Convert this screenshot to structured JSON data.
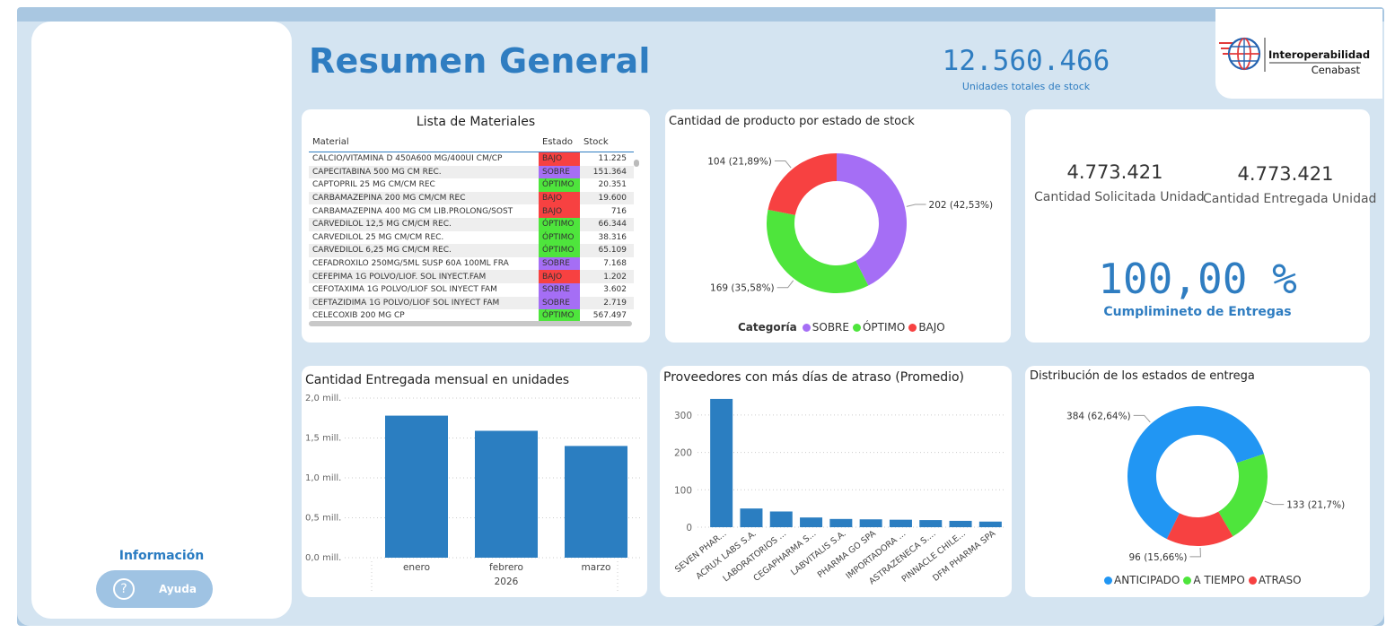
{
  "header": {
    "title": "Resumen General",
    "total_stock_value": "12.560.466",
    "total_stock_label": "Unidades totales de stock",
    "logo_line1": "Interoperabilidad",
    "logo_line2": "Cenabast"
  },
  "sidebar": {
    "info_label": "Información",
    "help_icon": "?",
    "help_label": "Ayuda"
  },
  "colors": {
    "accent": "#2f7dc1",
    "sobre": "#a56ef5",
    "optimo": "#4ee53c",
    "bajo": "#f74141",
    "bar": "#2b7ec1",
    "anticipado": "#2196f3",
    "atiempo": "#4ee53c",
    "atraso": "#f74141"
  },
  "materials": {
    "title": "Lista de Materiales",
    "columns": [
      "Material",
      "Estado",
      "Stock"
    ],
    "rows": [
      {
        "material": "CALCIO/VITAMINA D 450A600 MG/400UI CM/CP",
        "estado": "BAJO",
        "stock": "11.225"
      },
      {
        "material": "CAPECITABINA 500 MG CM REC.",
        "estado": "SOBRE",
        "stock": "151.364"
      },
      {
        "material": "CAPTOPRIL 25 MG CM/CM REC",
        "estado": "ÓPTIMO",
        "stock": "20.351"
      },
      {
        "material": "CARBAMAZEPINA 200 MG CM/CM REC",
        "estado": "BAJO",
        "stock": "19.600"
      },
      {
        "material": "CARBAMAZEPINA 400 MG CM LIB.PROLONG/SOST",
        "estado": "BAJO",
        "stock": "716"
      },
      {
        "material": "CARVEDILOL 12,5 MG CM/CM REC.",
        "estado": "ÓPTIMO",
        "stock": "66.344"
      },
      {
        "material": "CARVEDILOL 25 MG CM/CM REC.",
        "estado": "ÓPTIMO",
        "stock": "38.316"
      },
      {
        "material": "CARVEDILOL 6,25 MG CM/CM REC.",
        "estado": "ÓPTIMO",
        "stock": "65.109"
      },
      {
        "material": "CEFADROXILO 250MG/5ML SUSP 60A 100ML FRA",
        "estado": "SOBRE",
        "stock": "7.168"
      },
      {
        "material": "CEFEPIMA 1G POLVO/LIOF. SOL INYECT.FAM",
        "estado": "BAJO",
        "stock": "1.202"
      },
      {
        "material": "CEFOTAXIMA 1G POLVO/LIOF SOL INYECT FAM",
        "estado": "SOBRE",
        "stock": "3.602"
      },
      {
        "material": "CEFTAZIDIMA 1G POLVO/LIOF SOL INYECT FAM",
        "estado": "SOBRE",
        "stock": "2.719"
      },
      {
        "material": "CELECOXIB 200 MG CP",
        "estado": "ÓPTIMO",
        "stock": "567.497"
      }
    ]
  },
  "kpis": {
    "solicitada_value": "4.773.421",
    "solicitada_label": "Cantidad Solicitada Unidad",
    "entregada_value": "4.773.421",
    "entregada_label": "Cantidad Entregada Unidad",
    "cumplimiento_value": "100,00 %",
    "cumplimiento_label": "Cumplimineto de Entregas"
  },
  "chart_data": [
    {
      "type": "pie",
      "title": "Cantidad de producto por estado de stock",
      "legend_title": "Categoría",
      "legend_position": "bottom",
      "categories": [
        "SOBRE",
        "ÓPTIMO",
        "BAJO"
      ],
      "values": [
        202,
        169,
        104
      ],
      "data_labels": [
        "202 (42,53%)",
        "169 (35,58%)",
        "104 (21,89%)"
      ],
      "colors": [
        "#a56ef5",
        "#4ee53c",
        "#f74141"
      ]
    },
    {
      "type": "bar",
      "title": "Cantidad Entregada mensual en unidades",
      "categories": [
        "enero",
        "febrero",
        "marzo"
      ],
      "x_group_label": "2026",
      "values": [
        1780000,
        1590000,
        1400000
      ],
      "ylim": [
        0,
        2000000
      ],
      "yticks": [
        0,
        500000,
        1000000,
        1500000,
        2000000
      ],
      "ytick_labels": [
        "0,0 mill.",
        "0,5 mill.",
        "1,0 mill.",
        "1,5 mill.",
        "2,0 mill."
      ],
      "grid": true
    },
    {
      "type": "bar",
      "title": "Proveedores con más días de atraso (Promedio)",
      "categories": [
        "SEVEN PHAR...",
        "ACRUX LABS S.A.",
        "LABORATORIOS ...",
        "CEGAPHARMA S...",
        "LABVITALIS S.A.",
        "PHARMA GO SPA",
        "IMPORTADORA ...",
        "ASTRAZENECA S....",
        "PINNACLE CHILE...",
        "DFM PHARMA SPA"
      ],
      "values": [
        343,
        50,
        42,
        26,
        22,
        21,
        20,
        19,
        17,
        15
      ],
      "ylim": [
        0,
        350
      ],
      "yticks": [
        0,
        100,
        200,
        300
      ],
      "ytick_labels": [
        "0",
        "100",
        "200",
        "300"
      ],
      "grid": true
    },
    {
      "type": "pie",
      "title": "Distribución de los estados de entrega",
      "legend_position": "bottom",
      "categories": [
        "ANTICIPADO",
        "A TIEMPO",
        "ATRASO"
      ],
      "values": [
        384,
        133,
        96
      ],
      "data_labels": [
        "384 (62,64%)",
        "133 (21,7%)",
        "96 (15,66%)"
      ],
      "colors": [
        "#2196f3",
        "#4ee53c",
        "#f74141"
      ]
    }
  ]
}
